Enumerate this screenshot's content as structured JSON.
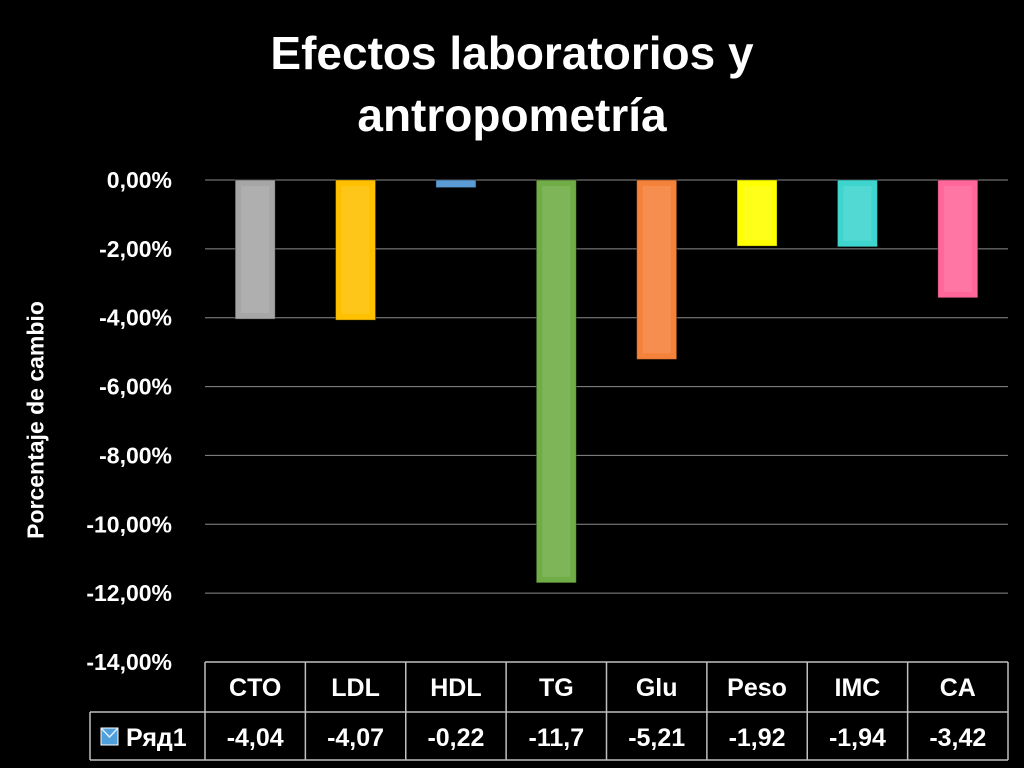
{
  "chart_data": {
    "type": "bar",
    "title_lines": [
      "Efectos laboratorios y",
      "antropometría"
    ],
    "ylabel": "Porcentaje de cambio",
    "xlabel": "",
    "ylim": [
      -14,
      0
    ],
    "yticks": [
      0,
      -2,
      -4,
      -6,
      -8,
      -10,
      -12,
      -14
    ],
    "ytick_labels": [
      "0,00%",
      "-2,00%",
      "-4,00%",
      "-6,00%",
      "-8,00%",
      "-10,00%",
      "-12,00%",
      "-14,00%"
    ],
    "grid": true,
    "categories": [
      "CTO",
      "LDL",
      "HDL",
      "TG",
      "Glu",
      "Peso",
      "IMC",
      "CA"
    ],
    "series": [
      {
        "name": "Ряд1",
        "values": [
          -4.04,
          -4.07,
          -0.22,
          -11.7,
          -5.21,
          -1.92,
          -1.94,
          -3.42
        ],
        "value_labels": [
          "-4,04",
          "-4,07",
          "-0,22",
          "-11,7",
          "-5,21",
          "-1,92",
          "-1,94",
          "-3,42"
        ],
        "colors": [
          "#a6a6a6",
          "#ffc000",
          "#5b9bd5",
          "#70ad47",
          "#f5823b",
          "#ffff00",
          "#3fd5cf",
          "#ff6699"
        ]
      }
    ],
    "data_table": true,
    "legend_key_color": "#4f9fdc"
  }
}
